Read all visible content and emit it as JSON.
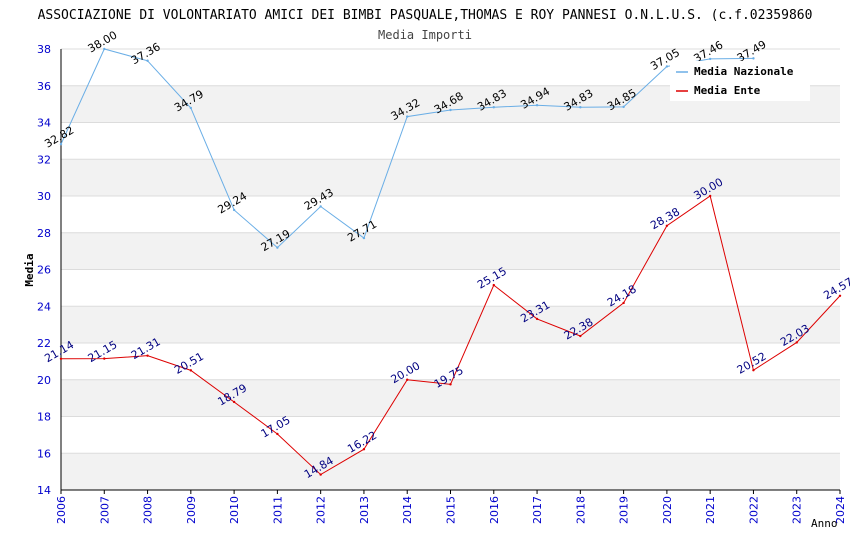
{
  "chart_data": {
    "type": "line",
    "title": "ASSOCIAZIONE DI VOLONTARIATO AMICI DEI BIMBI PASQUALE,THOMAS E ROY PANNESI O.N.L.U.S. (c.f.02359860",
    "subtitle": "Media Importi",
    "xlabel": "Anno",
    "ylabel": "Media",
    "ylim": [
      14,
      38
    ],
    "yticks": [
      "14",
      "16",
      "18",
      "20",
      "22",
      "24",
      "26",
      "28",
      "30",
      "32",
      "34",
      "36",
      "38"
    ],
    "grid": "horizontal bands",
    "legend_position": "top-right",
    "x": [
      "2006",
      "2007",
      "2008",
      "2009",
      "2010",
      "2011",
      "2012",
      "2013",
      "2014",
      "2015",
      "2016",
      "2017",
      "2018",
      "2019",
      "2020",
      "2021",
      "2022",
      "2023",
      "2024"
    ],
    "series": [
      {
        "name": "Media Nazionale",
        "color": "#6aaee6",
        "label_color": "#000000",
        "values": [
          32.82,
          38.0,
          37.36,
          34.79,
          29.24,
          27.19,
          29.43,
          27.71,
          34.32,
          34.68,
          34.83,
          34.94,
          34.83,
          34.85,
          37.05,
          37.46,
          37.49,
          null,
          null
        ],
        "labels": [
          "32.82",
          "38.00",
          "37.36",
          "34.79",
          "29.24",
          "27.19",
          "29.43",
          "27.71",
          "34.32",
          "34.68",
          "34.83",
          "34.94",
          "34.83",
          "34.85",
          "37.05",
          "37.46",
          "37.49",
          "",
          ""
        ]
      },
      {
        "name": "Media Ente",
        "color": "#dd0000",
        "label_color": "#000080",
        "values": [
          21.14,
          21.15,
          21.31,
          20.51,
          18.79,
          17.05,
          14.84,
          16.22,
          20.0,
          19.75,
          25.15,
          23.31,
          22.38,
          24.18,
          28.38,
          30.0,
          20.52,
          22.03,
          24.57
        ],
        "labels": [
          "21.14",
          "21.15",
          "21.31",
          "20.51",
          "18.79",
          "17.05",
          "14.84",
          "16.22",
          "20.00",
          "19.75",
          "25.15",
          "23.31",
          "22.38",
          "24.18",
          "28.38",
          "30.00",
          "20.52",
          "22.03",
          "24.57"
        ]
      }
    ],
    "colors": {
      "axis_text": "#0000cc",
      "band": "#f2f2f2",
      "grid": "#dcdcdc"
    }
  }
}
